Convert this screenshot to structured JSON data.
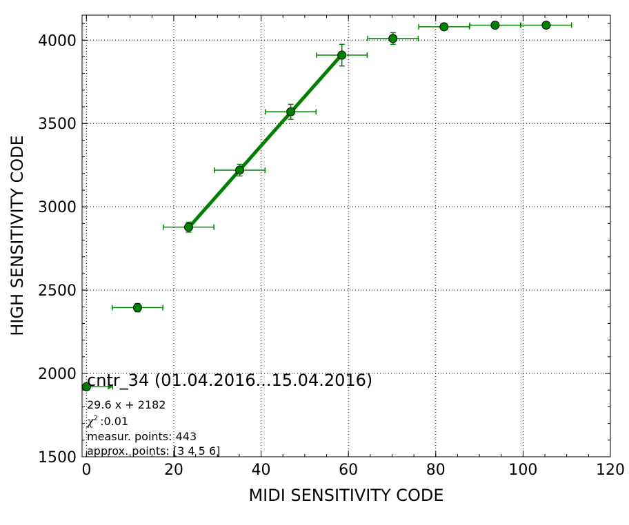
{
  "chart_data": {
    "type": "scatter",
    "title": "",
    "xlabel": "MIDI SENSITIVITY CODE",
    "ylabel": "HIGH SENSITIVITY CODE",
    "xlim": [
      -1,
      120
    ],
    "ylim": [
      1500,
      4150
    ],
    "x_ticks": [
      0,
      20,
      40,
      60,
      80,
      100,
      120
    ],
    "y_ticks": [
      1500,
      2000,
      2500,
      3000,
      3500,
      4000
    ],
    "x_minor_step": 5,
    "y_minor_step": 100,
    "grid": true,
    "color": "#008000",
    "points": [
      {
        "x": 0,
        "y": 1920,
        "xerr": 6,
        "yerr": 20
      },
      {
        "x": 11.7,
        "y": 2395,
        "xerr": 5.8,
        "yerr": 25
      },
      {
        "x": 23.4,
        "y": 2878,
        "xerr": 5.8,
        "yerr": 30
      },
      {
        "x": 35.1,
        "y": 3220,
        "xerr": 5.8,
        "yerr": 35
      },
      {
        "x": 46.8,
        "y": 3570,
        "xerr": 5.8,
        "yerr": 45
      },
      {
        "x": 58.5,
        "y": 3910,
        "xerr": 5.8,
        "yerr": 65
      },
      {
        "x": 70.2,
        "y": 4010,
        "xerr": 5.8,
        "yerr": 35
      },
      {
        "x": 81.9,
        "y": 4080,
        "xerr": 5.8,
        "yerr": 10
      },
      {
        "x": 93.6,
        "y": 4090,
        "xerr": 5.8,
        "yerr": 10
      },
      {
        "x": 105.3,
        "y": 4090,
        "xerr": 5.8,
        "yerr": 10
      }
    ],
    "fit": {
      "slope": 29.6,
      "intercept": 2182,
      "x_range": [
        23.4,
        58.5
      ]
    },
    "annotations": {
      "title": "cntr_34 (01.04.2016...15.04.2016)",
      "equation": "29.6 x + 2182",
      "chi_symbol": "χ",
      "chi_power": "2",
      "chi_value": ":0.01",
      "measur_points": "measur. points: 443",
      "approx_points": "approx. points: [3 4 5 6]"
    }
  }
}
